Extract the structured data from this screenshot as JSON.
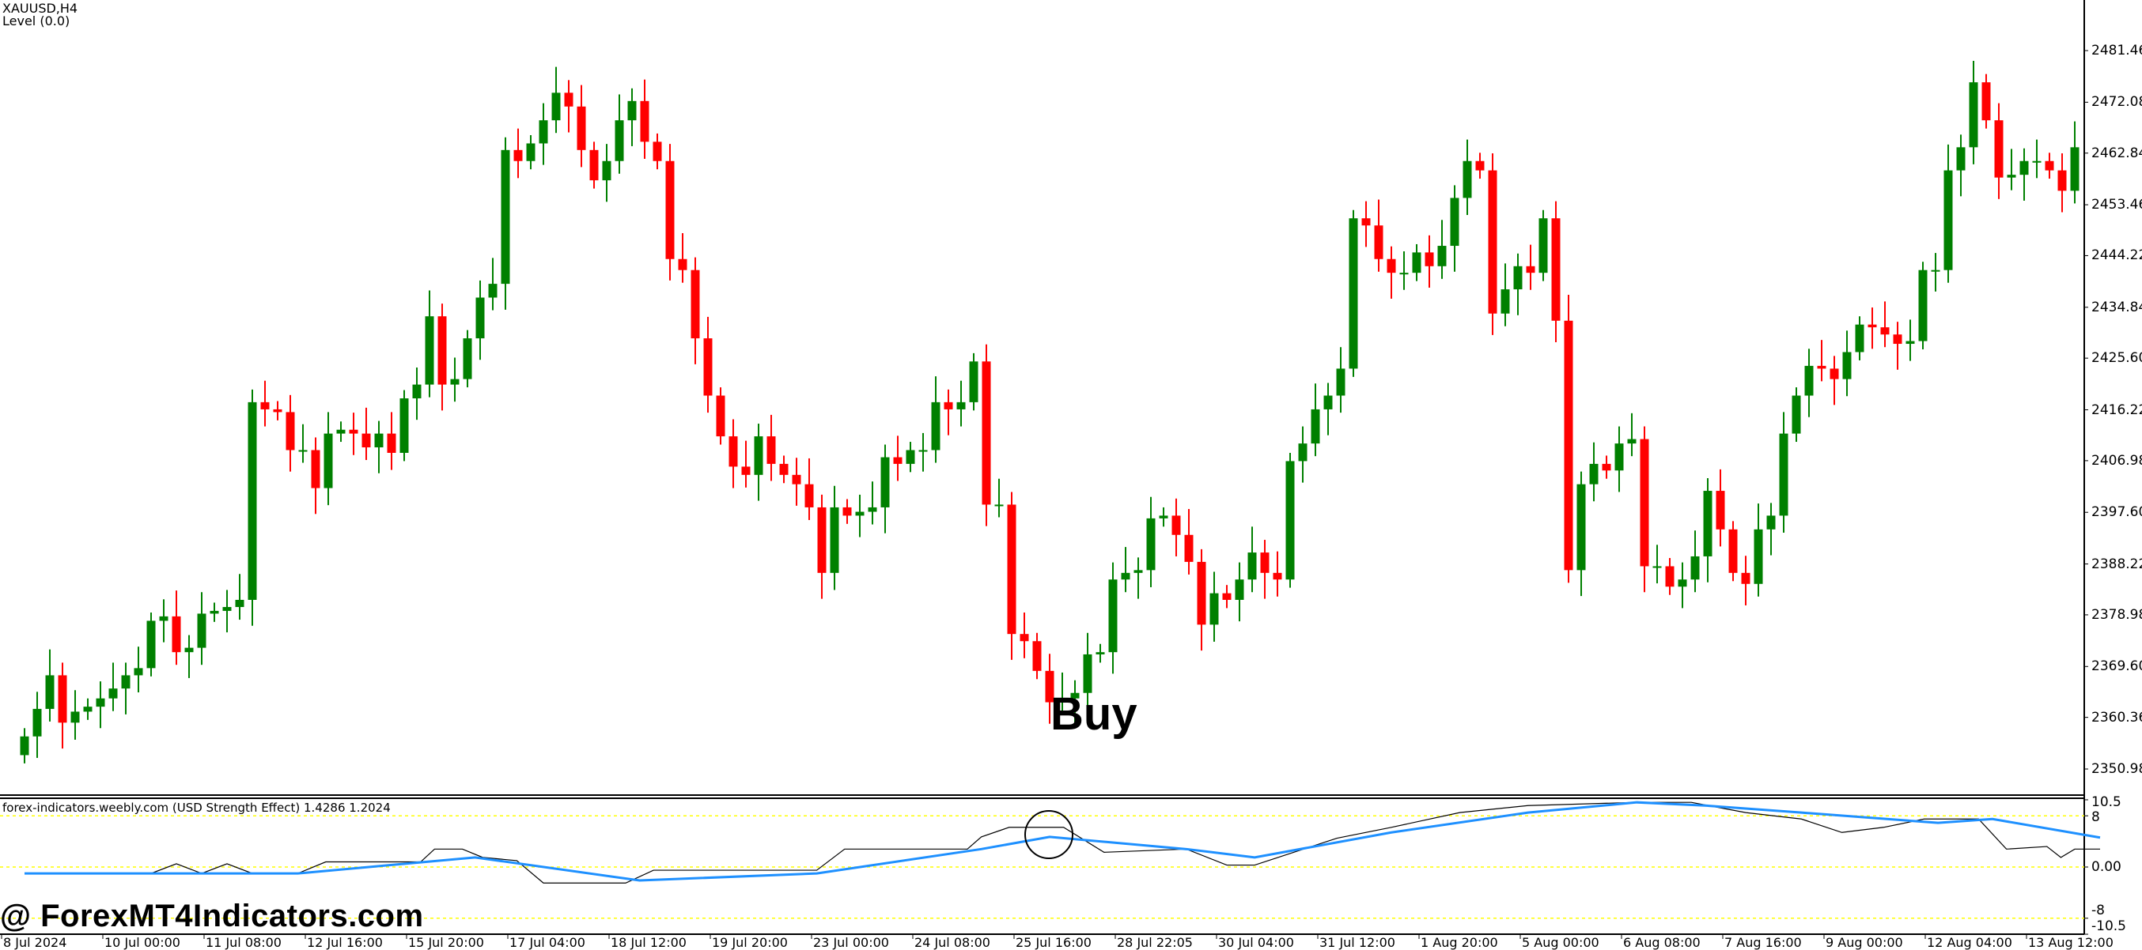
{
  "header": {
    "symbol": "XAUUSD,H4",
    "level": "Level (0.0)"
  },
  "indicator": {
    "title": "forex-indicators.weebly.com (USD Strength Effect) 1.4286 1.2024",
    "axis_labels": [
      "10.5",
      "8",
      "0.00",
      "-8",
      "-10.5"
    ],
    "levels": [
      8,
      0,
      -8
    ],
    "range": [
      -10.5,
      10.5
    ],
    "level_color": "#ffff00",
    "fast_color": "#000000",
    "slow_color": "#1e90ff"
  },
  "annotation": {
    "text": "Buy"
  },
  "watermark": "@ ForexMT4Indicators.com",
  "colors": {
    "bull": "#008000",
    "bear": "#ff0000"
  },
  "chart_data": {
    "type": "candlestick",
    "price_ticks": [
      "2481.460",
      "2472.080",
      "2462.840",
      "2453.460",
      "2444.220",
      "2434.840",
      "2425.600",
      "2416.220",
      "2406.980",
      "2397.600",
      "2388.220",
      "2378.980",
      "2369.600",
      "2360.360",
      "2350.980"
    ],
    "ylim": [
      2350.98,
      2481.46
    ],
    "time_ticks": [
      "8 Jul 2024",
      "10 Jul 00:00",
      "11 Jul 08:00",
      "12 Jul 16:00",
      "15 Jul 20:00",
      "17 Jul 04:00",
      "18 Jul 12:00",
      "19 Jul 20:00",
      "23 Jul 00:00",
      "24 Jul 08:00",
      "25 Jul 16:00",
      "28 Jul 22:05",
      "30 Jul 04:00",
      "31 Jul 12:00",
      "1 Aug 20:00",
      "5 Aug 00:00",
      "6 Aug 08:00",
      "7 Aug 16:00",
      "9 Aug 00:00",
      "12 Aug 04:00",
      "13 Aug 12:00"
    ],
    "first_open": 2353.5,
    "closes": [
      2356.9,
      2361.9,
      2368.0,
      2359.4,
      2361.4,
      2362.3,
      2363.8,
      2365.6,
      2368.0,
      2369.3,
      2377.9,
      2378.7,
      2372.2,
      2373.0,
      2379.2,
      2379.7,
      2380.4,
      2381.7,
      2417.6,
      2416.3,
      2415.8,
      2408.9,
      2408.9,
      2402.0,
      2411.9,
      2412.6,
      2411.9,
      2409.4,
      2411.9,
      2408.4,
      2418.3,
      2420.8,
      2433.2,
      2420.8,
      2421.8,
      2429.2,
      2436.6,
      2439.1,
      2463.4,
      2461.4,
      2464.6,
      2468.8,
      2473.8,
      2471.3,
      2463.4,
      2457.9,
      2461.4,
      2468.8,
      2472.3,
      2464.9,
      2461.4,
      2443.6,
      2441.6,
      2429.2,
      2418.8,
      2411.4,
      2405.9,
      2404.4,
      2411.4,
      2406.4,
      2404.4,
      2402.7,
      2398.5,
      2386.6,
      2398.5,
      2397.0,
      2397.7,
      2398.5,
      2407.6,
      2406.4,
      2408.9,
      2408.9,
      2417.6,
      2416.3,
      2417.6,
      2425.0,
      2399.0,
      2399.0,
      2375.5,
      2374.2,
      2368.8,
      2363.1,
      2363.8,
      2364.8,
      2371.8,
      2372.2,
      2385.4,
      2386.6,
      2387.1,
      2396.5,
      2397.0,
      2393.5,
      2388.6,
      2377.2,
      2382.9,
      2381.7,
      2385.4,
      2390.3,
      2386.6,
      2385.4,
      2406.9,
      2410.1,
      2416.3,
      2418.8,
      2423.7,
      2451.0,
      2449.7,
      2443.6,
      2441.1,
      2441.1,
      2444.8,
      2442.3,
      2446.0,
      2454.7,
      2461.4,
      2459.7,
      2433.7,
      2438.1,
      2442.3,
      2441.1,
      2451.0,
      2432.4,
      2387.1,
      2402.7,
      2406.4,
      2405.2,
      2410.1,
      2410.9,
      2387.8,
      2387.8,
      2384.1,
      2385.4,
      2389.6,
      2401.5,
      2394.5,
      2386.6,
      2384.6,
      2394.5,
      2397.0,
      2411.9,
      2418.8,
      2424.2,
      2423.7,
      2421.8,
      2426.7,
      2431.7,
      2431.2,
      2429.9,
      2428.2,
      2428.7,
      2441.6,
      2441.6,
      2459.7,
      2463.9,
      2475.7,
      2468.8,
      2458.4,
      2458.9,
      2461.4,
      2461.4,
      2459.7,
      2456.0,
      2463.9
    ],
    "indicator_slow": [
      [
        0,
        -1
      ],
      [
        21.6,
        -1
      ],
      [
        35.6,
        1.5
      ],
      [
        48.6,
        -2.1
      ],
      [
        62.6,
        -1
      ],
      [
        75.6,
        2.8
      ],
      [
        81,
        4.7
      ],
      [
        91.8,
        2.8
      ],
      [
        97.2,
        1.5
      ],
      [
        108,
        5.4
      ],
      [
        118.8,
        8.5
      ],
      [
        127.4,
        10.1
      ],
      [
        132.8,
        9.6
      ],
      [
        140.4,
        8.5
      ],
      [
        151.2,
        6.9
      ],
      [
        155.5,
        7.5
      ],
      [
        164,
        4.6
      ]
    ],
    "indicator_fast": [
      [
        0,
        -1
      ],
      [
        10,
        -1
      ],
      [
        12,
        0.5
      ],
      [
        14,
        -1
      ],
      [
        16,
        0.5
      ],
      [
        18,
        -1
      ],
      [
        21.6,
        -1
      ],
      [
        23.8,
        0.8
      ],
      [
        31.3,
        0.8
      ],
      [
        32.4,
        2.8
      ],
      [
        34.6,
        2.8
      ],
      [
        36.2,
        1.5
      ],
      [
        38.9,
        1.0
      ],
      [
        41,
        -2.5
      ],
      [
        47.5,
        -2.5
      ],
      [
        49.7,
        -0.5
      ],
      [
        62.6,
        -0.5
      ],
      [
        64.8,
        2.8
      ],
      [
        74.5,
        2.8
      ],
      [
        75.6,
        4.7
      ],
      [
        77.8,
        6.2
      ],
      [
        82.1,
        6.2
      ],
      [
        85.3,
        2.3
      ],
      [
        91.8,
        2.8
      ],
      [
        95,
        0.3
      ],
      [
        97.2,
        0.3
      ],
      [
        103.7,
        4.5
      ],
      [
        108,
        6.2
      ],
      [
        113.4,
        8.5
      ],
      [
        118.8,
        9.6
      ],
      [
        127.4,
        10.1
      ],
      [
        131.7,
        10.1
      ],
      [
        136,
        8.5
      ],
      [
        140.4,
        7.5
      ],
      [
        143.6,
        5.4
      ],
      [
        146.9,
        6.2
      ],
      [
        150.1,
        7.5
      ],
      [
        154.4,
        7.5
      ],
      [
        156.6,
        2.8
      ],
      [
        159.8,
        3.2
      ],
      [
        160.9,
        1.5
      ],
      [
        162,
        2.8
      ],
      [
        164,
        2.8
      ]
    ]
  }
}
